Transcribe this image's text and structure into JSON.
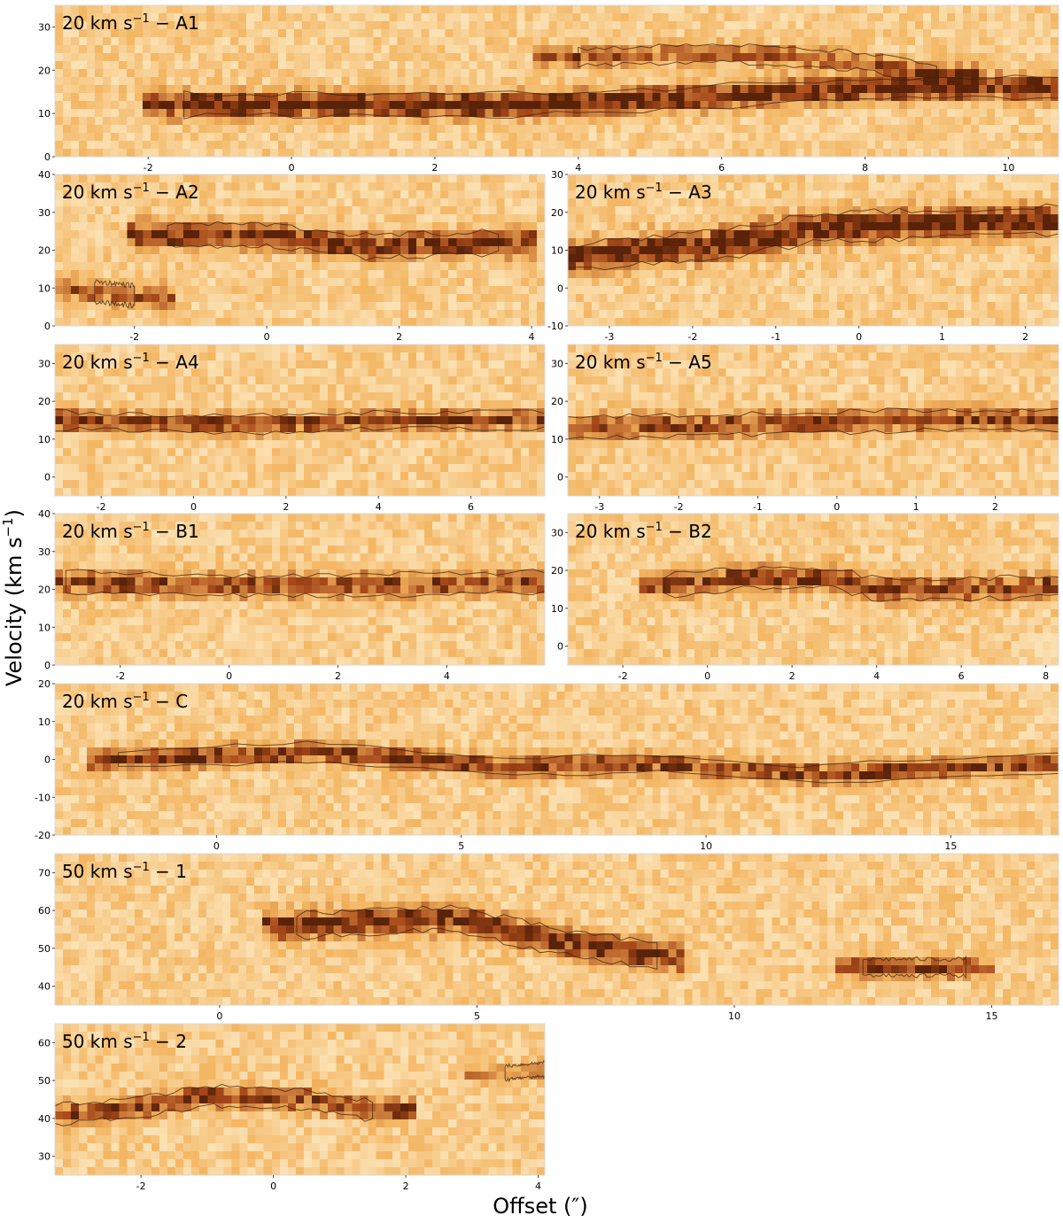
{
  "figure": {
    "ylabel_main": "Velocity (km s",
    "ylabel_sup": "−1",
    "ylabel_close": ")",
    "xlabel": "Offset (″)"
  },
  "colors": {
    "low": "#fff7dc",
    "mid": "#f3b45f",
    "high": "#a6491a",
    "peak": "#5a2208",
    "contour": "#3a2410"
  },
  "chart_data": [
    {
      "type": "heatmap",
      "label_pre": "20 km s",
      "label_sup": "−1",
      "label_post": " − A1",
      "xlim": [
        -3.3,
        10.7
      ],
      "ylim": [
        0,
        35
      ],
      "xticks": [
        "-2",
        "0",
        "2",
        "4",
        "6",
        "8",
        "10"
      ],
      "xtick_values": [
        -2,
        0,
        2,
        4,
        6,
        8,
        10
      ],
      "yticks": [
        "0",
        "10",
        "20",
        "30"
      ],
      "ytick_values": [
        0,
        10,
        20,
        30
      ],
      "ridges": [
        {
          "x": [
            -1.5,
            0.5,
            3,
            5,
            7,
            9,
            10.7
          ],
          "v": [
            12,
            12,
            12,
            13,
            15,
            16,
            16
          ],
          "width": 2.8,
          "strength": 0.85
        },
        {
          "x": [
            4,
            6,
            8,
            9
          ],
          "v": [
            23,
            24,
            22,
            19
          ],
          "width": 2.2,
          "strength": 0.55
        }
      ]
    },
    {
      "type": "heatmap",
      "label_pre": "20 km s",
      "label_sup": "−1",
      "label_post": " − A2",
      "xlim": [
        -3.2,
        4.2
      ],
      "ylim": [
        0,
        40
      ],
      "xticks": [
        "-2",
        "0",
        "2",
        "4"
      ],
      "xtick_values": [
        -2,
        0,
        2,
        4
      ],
      "yticks": [
        "0",
        "10",
        "20",
        "30",
        "40"
      ],
      "ytick_values": [
        0,
        10,
        20,
        30,
        40
      ],
      "ridges": [
        {
          "x": [
            -1.5,
            0,
            1.5,
            3.5
          ],
          "v": [
            24,
            24,
            21,
            22
          ],
          "width": 3.2,
          "strength": 0.8
        },
        {
          "x": [
            -2.6,
            -2
          ],
          "v": [
            9,
            8
          ],
          "width": 3,
          "strength": 0.5
        }
      ]
    },
    {
      "type": "heatmap",
      "label_pre": "20 km s",
      "label_sup": "−1",
      "label_post": " − A3",
      "xlim": [
        -3.5,
        2.4
      ],
      "ylim": [
        -10,
        30
      ],
      "xticks": [
        "-3",
        "-2",
        "-1",
        "0",
        "1",
        "2"
      ],
      "xtick_values": [
        -3,
        -2,
        -1,
        0,
        1,
        2
      ],
      "yticks": [
        "-10",
        "0",
        "10",
        "20",
        "30"
      ],
      "ytick_values": [
        -10,
        0,
        10,
        20,
        30
      ],
      "ridges": [
        {
          "x": [
            -3.5,
            -2.5,
            -1.5,
            -0.5,
            1,
            2.4
          ],
          "v": [
            8,
            10,
            12,
            16,
            17,
            18
          ],
          "width": 4,
          "strength": 0.85
        }
      ]
    },
    {
      "type": "heatmap",
      "label_pre": "20 km s",
      "label_sup": "−1",
      "label_post": " − A4",
      "xlim": [
        -3,
        7.6
      ],
      "ylim": [
        -5,
        35
      ],
      "xticks": [
        "-2",
        "0",
        "2",
        "4",
        "6"
      ],
      "xtick_values": [
        -2,
        0,
        2,
        4,
        6
      ],
      "yticks": [
        "0",
        "10",
        "20",
        "30"
      ],
      "ytick_values": [
        0,
        10,
        20,
        30
      ],
      "ridges": [
        {
          "x": [
            -3,
            0,
            2,
            4,
            7.6
          ],
          "v": [
            15,
            14,
            14,
            15,
            15
          ],
          "width": 2.5,
          "strength": 0.7
        }
      ]
    },
    {
      "type": "heatmap",
      "label_pre": "20 km s",
      "label_sup": "−1",
      "label_post": " − A5",
      "xlim": [
        -3.4,
        2.8
      ],
      "ylim": [
        -5,
        35
      ],
      "xticks": [
        "-3",
        "-2",
        "-1",
        "0",
        "1",
        "2"
      ],
      "xtick_values": [
        -3,
        -2,
        -1,
        0,
        1,
        2
      ],
      "yticks": [
        "0",
        "10",
        "20",
        "30"
      ],
      "ytick_values": [
        0,
        10,
        20,
        30
      ],
      "ridges": [
        {
          "x": [
            -3.4,
            -1,
            1,
            2.8
          ],
          "v": [
            13,
            14,
            15,
            15
          ],
          "width": 3,
          "strength": 0.65
        }
      ]
    },
    {
      "type": "heatmap",
      "label_pre": "20 km s",
      "label_sup": "−1",
      "label_post": " − B1",
      "xlim": [
        -3.2,
        5.8
      ],
      "ylim": [
        0,
        40
      ],
      "xticks": [
        "-2",
        "0",
        "2",
        "4"
      ],
      "xtick_values": [
        -2,
        0,
        2,
        4
      ],
      "yticks": [
        "0",
        "10",
        "20",
        "30",
        "40"
      ],
      "ytick_values": [
        0,
        10,
        20,
        30,
        40
      ],
      "ridges": [
        {
          "x": [
            -3,
            0,
            2,
            5.8
          ],
          "v": [
            22,
            21,
            21,
            22
          ],
          "width": 3,
          "strength": 0.62
        }
      ]
    },
    {
      "type": "heatmap",
      "label_pre": "20 km s",
      "label_sup": "−1",
      "label_post": " − B2",
      "xlim": [
        -3.3,
        8.3
      ],
      "ylim": [
        -5,
        35
      ],
      "xticks": [
        "-2",
        "0",
        "2",
        "4",
        "6",
        "8"
      ],
      "xtick_values": [
        -2,
        0,
        2,
        4,
        6,
        8
      ],
      "yticks": [
        "0",
        "10",
        "20",
        "30"
      ],
      "ytick_values": [
        0,
        10,
        20,
        30
      ],
      "ridges": [
        {
          "x": [
            -1,
            1,
            3,
            4,
            6,
            8.3
          ],
          "v": [
            16,
            18,
            18,
            15,
            15,
            16
          ],
          "width": 3,
          "strength": 0.7
        }
      ]
    },
    {
      "type": "heatmap",
      "label_pre": "20 km s",
      "label_sup": "−1",
      "label_post": " − C",
      "xlim": [
        -3.3,
        17.2
      ],
      "ylim": [
        -20,
        20
      ],
      "xticks": [
        "0",
        "5",
        "10",
        "15"
      ],
      "xtick_values": [
        0,
        5,
        10,
        15
      ],
      "yticks": [
        "-20",
        "-10",
        "0",
        "10",
        "20"
      ],
      "ytick_values": [
        -20,
        -10,
        0,
        10,
        20
      ],
      "ridges": [
        {
          "x": [
            -2,
            2,
            6,
            9,
            12,
            17.2
          ],
          "v": [
            0,
            2,
            -2,
            -1,
            -4,
            -1
          ],
          "width": 2.6,
          "strength": 0.72
        }
      ]
    },
    {
      "type": "heatmap",
      "label_pre": "50 km s",
      "label_sup": "−1",
      "label_post": " − 1",
      "xlim": [
        -3.2,
        16.3
      ],
      "ylim": [
        35,
        75
      ],
      "xticks": [
        "0",
        "5",
        "10",
        "15"
      ],
      "xtick_values": [
        0,
        5,
        10,
        15
      ],
      "yticks": [
        "40",
        "50",
        "60",
        "70"
      ],
      "ytick_values": [
        40,
        50,
        60,
        70
      ],
      "ridges": [
        {
          "x": [
            1.5,
            4.5,
            6.5,
            8.5
          ],
          "v": [
            56,
            58,
            52,
            48
          ],
          "width": 3.5,
          "strength": 0.82
        },
        {
          "x": [
            12.5,
            14.5
          ],
          "v": [
            45,
            45
          ],
          "width": 2.4,
          "strength": 0.72
        }
      ]
    },
    {
      "type": "heatmap",
      "label_pre": "50 km s",
      "label_sup": "−1",
      "label_post": " − 2",
      "xlim": [
        -3.3,
        4.1
      ],
      "ylim": [
        25,
        65
      ],
      "xticks": [
        "-2",
        "0",
        "2",
        "4"
      ],
      "xtick_values": [
        -2,
        0,
        2,
        4
      ],
      "yticks": [
        "30",
        "40",
        "50",
        "60"
      ],
      "ytick_values": [
        30,
        40,
        50,
        60
      ],
      "ridges": [
        {
          "x": [
            -3.3,
            -2,
            -1,
            0.5,
            1.5
          ],
          "v": [
            41,
            43,
            46,
            45,
            42
          ],
          "width": 2.8,
          "strength": 0.65
        },
        {
          "x": [
            3.5,
            4.1
          ],
          "v": [
            52,
            53
          ],
          "width": 2,
          "strength": 0.45
        }
      ]
    }
  ]
}
